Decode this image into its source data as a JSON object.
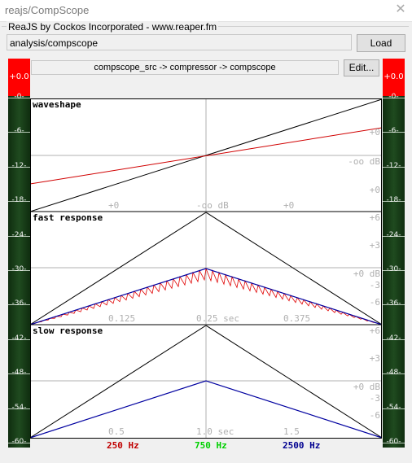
{
  "window": {
    "title": "reajs/CompScope"
  },
  "group": {
    "legend": "ReaJS by Cockos Incorporated - www.reaper.fm"
  },
  "path": {
    "value": "analysis/compscope"
  },
  "buttons": {
    "load": "Load",
    "edit": "Edit..."
  },
  "chain": "compscope_src -> compressor -> compscope",
  "meters": {
    "left": {
      "peak": "+0.0"
    },
    "right": {
      "peak": "+0.0"
    },
    "labels": [
      "-0-",
      "-6-",
      "-12-",
      "-18-",
      "-24-",
      "-30-",
      "-36-",
      "-42-",
      "-48-",
      "-54-",
      "-60-"
    ]
  },
  "panels": {
    "waveshape": {
      "title": "waveshape",
      "x_labels": [
        "+0",
        "-oo dB",
        "+0"
      ],
      "y_labels": [
        "+0",
        "-oo dB",
        "+0"
      ]
    },
    "fast": {
      "title": "fast response",
      "x_labels": [
        "0.125",
        "0.25 sec",
        "0.375"
      ],
      "y_labels": [
        "+6",
        "+3",
        "+0 dB",
        "-3",
        "-6"
      ]
    },
    "slow": {
      "title": "slow response",
      "x_labels": [
        "0.5",
        "1.0 sec",
        "1.5"
      ],
      "y_labels": [
        "+6",
        "+3",
        "+0 dB",
        "-3",
        "-6"
      ]
    }
  },
  "freqs": [
    {
      "label": "250 Hz",
      "color": "#c00000"
    },
    {
      "label": "750 Hz",
      "color": "#00d000"
    },
    {
      "label": "2500 Hz",
      "color": "#000090"
    }
  ],
  "colors": {
    "bg": "#ffffff",
    "grid": "#b0b0b0",
    "input": "#000000",
    "output": "#d00000",
    "slow_output": "#0000a0",
    "label": "#b0b0b0"
  }
}
